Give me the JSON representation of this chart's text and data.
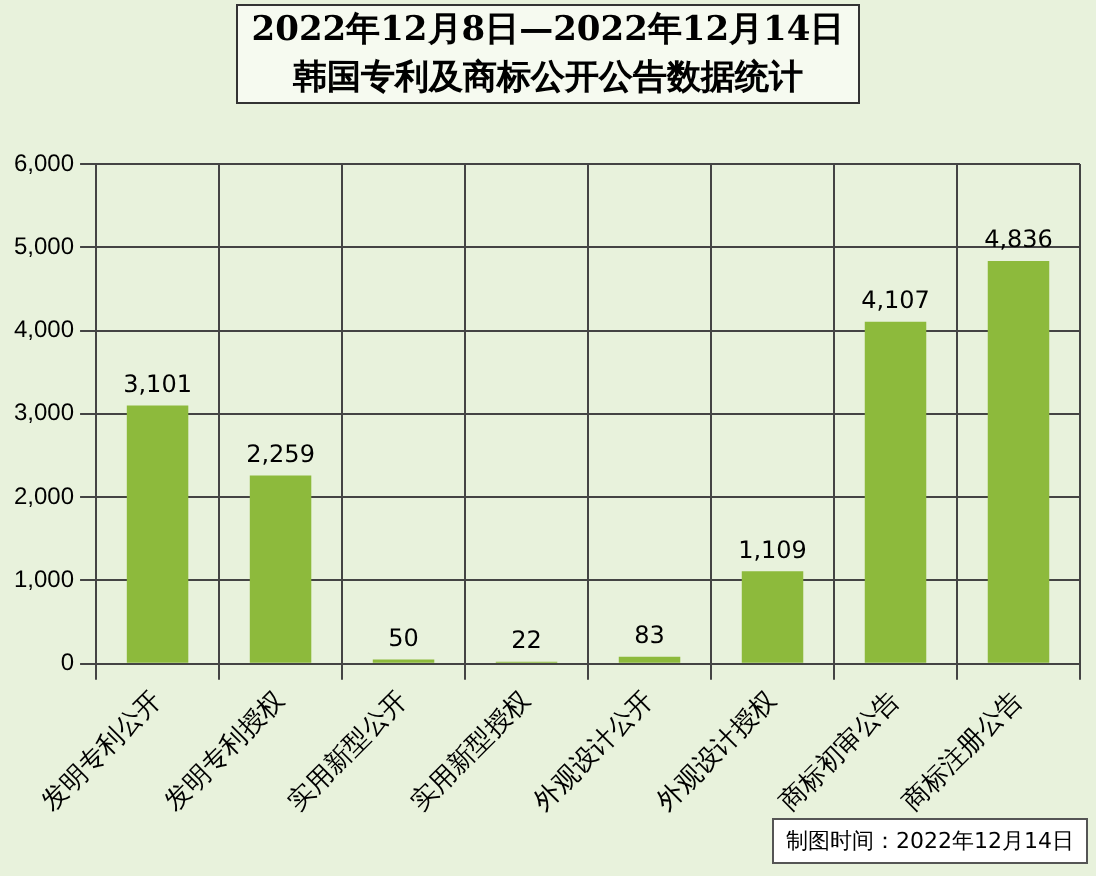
{
  "chart_data": {
    "type": "bar",
    "title": "2022年12月8日—2022年12月14日",
    "subtitle": "韩国专利及商标公开公告数据统计",
    "categories": [
      "发明专利公开",
      "发明专利授权",
      "实用新型公开",
      "实用新型授权",
      "外观设计公开",
      "外观设计授权",
      "商标初审公告",
      "商标注册公告"
    ],
    "values": [
      3101,
      2259,
      50,
      22,
      83,
      1109,
      4107,
      4836
    ],
    "value_labels": [
      "3,101",
      "2,259",
      "50",
      "22",
      "83",
      "1,109",
      "4,107",
      "4,836"
    ],
    "color": "#8dba3c",
    "ylim": [
      0,
      6000
    ],
    "yticks": [
      0,
      {
        "value": 1000,
        "label": "1,000"
      },
      {
        "value": 2000,
        "label": "2,000"
      },
      {
        "value": 3000,
        "label": "3,000"
      },
      {
        "value": 4000,
        "label": "4,000"
      },
      {
        "value": 5000,
        "label": "5,000"
      },
      {
        "value": 6000,
        "label": "6,000"
      }
    ],
    "grid": true,
    "legend": false,
    "annotations": [
      "制图时间：2022年12月14日"
    ]
  }
}
